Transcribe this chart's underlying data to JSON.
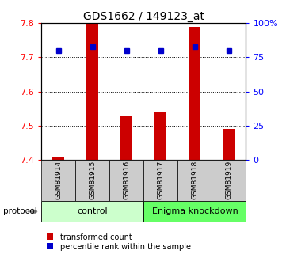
{
  "title": "GDS1662 / 149123_at",
  "samples": [
    "GSM81914",
    "GSM81915",
    "GSM81916",
    "GSM81917",
    "GSM81918",
    "GSM81919"
  ],
  "red_values": [
    7.41,
    7.8,
    7.53,
    7.54,
    7.79,
    7.49
  ],
  "blue_pct": [
    80,
    83,
    80,
    80,
    83,
    80
  ],
  "y_min": 7.4,
  "y_max": 7.8,
  "y_ticks_red": [
    7.4,
    7.5,
    7.6,
    7.7,
    7.8
  ],
  "y_ticks_blue": [
    0,
    25,
    50,
    75,
    100
  ],
  "y_ticks_blue_labels": [
    "0",
    "25",
    "50",
    "75",
    "100%"
  ],
  "control_label": "control",
  "knockdown_label": "Enigma knockdown",
  "protocol_label": "protocol",
  "legend_red": "transformed count",
  "legend_blue": "percentile rank within the sample",
  "bar_color": "#cc0000",
  "dot_color": "#0000cc",
  "control_color": "#ccffcc",
  "knockdown_color": "#66ff66",
  "sample_box_color": "#cccccc",
  "bar_baseline": 7.4,
  "grid_lines": [
    7.5,
    7.6,
    7.7
  ],
  "n_control": 3
}
